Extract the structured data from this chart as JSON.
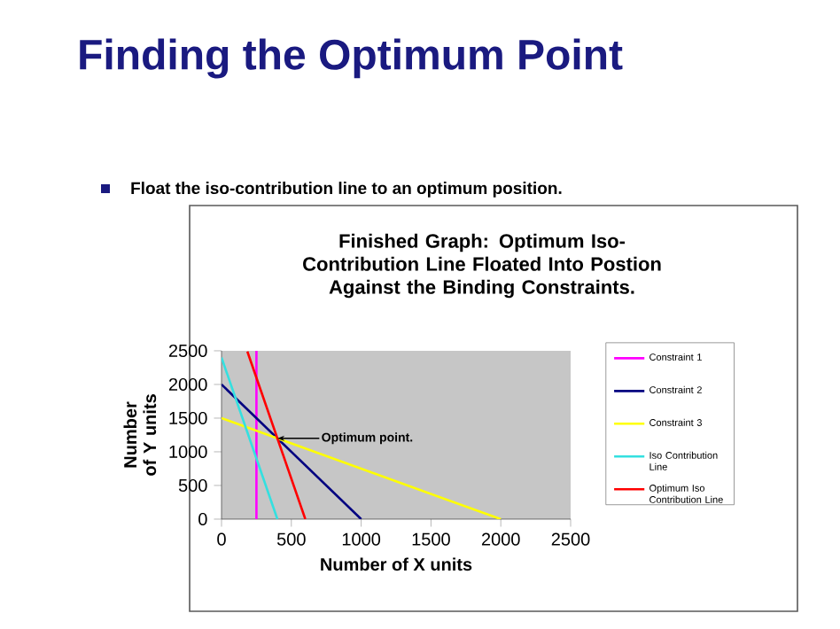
{
  "chart_data": {
    "type": "line",
    "title": "Finished Graph: Optimum Iso-Contribution Line Floated Into Postion Against the Binding Constraints.",
    "xlabel": "Number of X units",
    "ylabel": "Number of Y units",
    "xlim": [
      0,
      2500
    ],
    "ylim": [
      0,
      2500
    ],
    "xticks": [
      0,
      500,
      1000,
      1500,
      2000,
      2500
    ],
    "yticks": [
      0,
      500,
      1000,
      1500,
      2000,
      2500
    ],
    "legend": "right",
    "grid": false,
    "series": [
      {
        "name": "Constraint 1",
        "color": "#ff00ff",
        "x": [
          250,
          250
        ],
        "values": [
          0,
          2500
        ]
      },
      {
        "name": "Constraint 2",
        "color": "#000080",
        "x": [
          0,
          1000
        ],
        "values": [
          2000,
          0
        ]
      },
      {
        "name": "Constraint 3",
        "color": "#ffff00",
        "x": [
          0,
          2000
        ],
        "values": [
          1500,
          0
        ]
      },
      {
        "name": "Iso Contribution Line",
        "color": "#33e0e0",
        "x": [
          0,
          400
        ],
        "values": [
          2400,
          0
        ]
      },
      {
        "name": "Optimum Iso Contribution Line",
        "color": "#ff0000",
        "x": [
          185,
          600
        ],
        "values": [
          2490,
          0
        ]
      }
    ],
    "annotations": [
      "Finding the Optimum Point",
      "Float the iso-contribution line to an optimum position.",
      {
        "text": "Optimum point.",
        "x": 400,
        "y": 1200
      }
    ]
  }
}
